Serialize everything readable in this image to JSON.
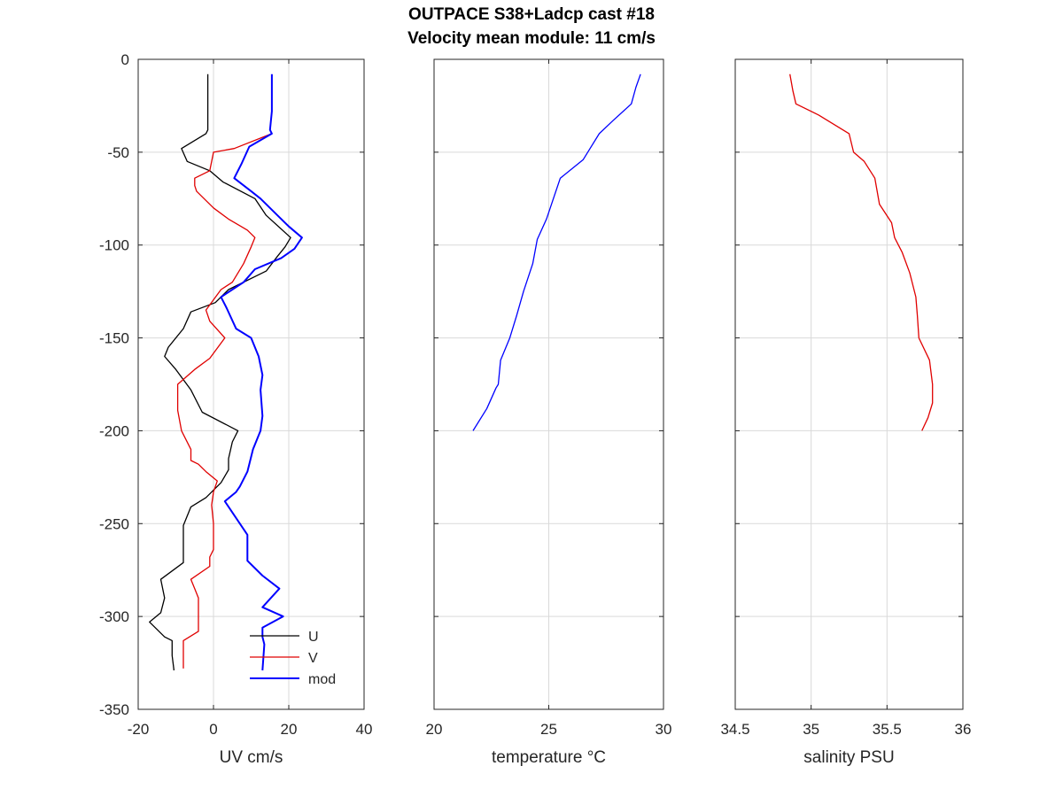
{
  "title": "OUTPACE S38+Ladcp cast #18",
  "subtitle": "Velocity mean module:  11 cm/s",
  "colors": {
    "U": "#000000",
    "V": "#e00000",
    "mod": "#0000ff",
    "grid": "#d9d9d9",
    "axis": "#262626"
  },
  "chart_data": [
    {
      "type": "line",
      "xlabel": "UV cm/s",
      "ylabel": "",
      "xlim": [
        -20,
        40
      ],
      "ylim": [
        -350,
        0
      ],
      "xticks": [
        -20,
        0,
        20,
        40
      ],
      "yticks": [
        0,
        -50,
        -100,
        -150,
        -200,
        -250,
        -300,
        -350
      ],
      "grid": true,
      "legend": "bottom-right",
      "series": [
        {
          "name": "U",
          "color": "#000000",
          "x": [
            -1.5,
            -1.5,
            -2,
            -8.5,
            -7,
            -1,
            2.5,
            11,
            14,
            20.5,
            19,
            17,
            14,
            4,
            0.5,
            -6,
            -8,
            -12,
            -13,
            -10,
            -6,
            -3,
            6.5,
            5,
            4,
            4,
            2,
            -2,
            -6,
            -8,
            -8,
            -8,
            -14,
            -13,
            -14,
            -17,
            -13,
            -11,
            -11,
            -10.5
          ],
          "y": [
            -8,
            -38,
            -40,
            -48,
            -55,
            -60,
            -66,
            -75,
            -84,
            -96,
            -101,
            -106,
            -114,
            -124,
            -131,
            -136,
            -145,
            -155,
            -160,
            -167,
            -178,
            -190,
            -200,
            -206,
            -215,
            -221,
            -228,
            -236,
            -241,
            -251,
            -257,
            -271,
            -280,
            -290,
            -298,
            -303,
            -311,
            -313,
            -321,
            -329
          ]
        },
        {
          "name": "V",
          "color": "#e00000",
          "x": [
            15.5,
            5.5,
            0,
            -1,
            -5,
            -5,
            -4.5,
            0,
            4,
            9,
            11,
            10,
            8,
            5,
            2,
            -2,
            -1,
            3,
            -1,
            -5,
            -9.5,
            -9.5,
            -8.5,
            -6,
            -6,
            -4,
            -2,
            1,
            0,
            -0.5,
            0,
            0,
            -1,
            -1,
            -6,
            -5,
            -4,
            -4,
            -8,
            -8
          ],
          "y": [
            -40,
            -48,
            -50,
            -60,
            -64,
            -68,
            -71,
            -80,
            -86,
            -92,
            -96,
            -101,
            -110,
            -120,
            -124,
            -135,
            -141,
            -150,
            -161,
            -167,
            -175,
            -189,
            -200,
            -210,
            -216,
            -218,
            -222,
            -227,
            -233,
            -240,
            -250,
            -264,
            -268,
            -273,
            -280,
            -285,
            -290,
            -308,
            -313,
            -328
          ]
        },
        {
          "name": "mod",
          "color": "#0000ff",
          "x": [
            15.5,
            15.5,
            15,
            15.5,
            9.5,
            7.5,
            5.5,
            10,
            12.5,
            17.5,
            20,
            23.5,
            21.5,
            18,
            11,
            8,
            2,
            3.5,
            6,
            10,
            12,
            13,
            12.5,
            13,
            12.5,
            10.5,
            9.5,
            9,
            7,
            6,
            3,
            5,
            7,
            9,
            9,
            9,
            13,
            17.5,
            13,
            18.5,
            13,
            13,
            13.5,
            13
          ],
          "y": [
            -8,
            -28,
            -38,
            -40,
            -47,
            -56,
            -64,
            -71,
            -75,
            -85,
            -90,
            -96,
            -102,
            -107,
            -113,
            -120,
            -128,
            -134,
            -145,
            -150,
            -160,
            -170,
            -178,
            -192,
            -200,
            -210,
            -218,
            -222,
            -230,
            -233,
            -238,
            -244,
            -250,
            -256,
            -265,
            -270,
            -278,
            -285,
            -295,
            -300,
            -306,
            -311,
            -315,
            -329
          ]
        }
      ]
    },
    {
      "type": "line",
      "xlabel": "temperature °C",
      "xlim": [
        20,
        30
      ],
      "ylim": [
        -350,
        0
      ],
      "xticks": [
        20,
        25,
        30
      ],
      "yticks": [
        0,
        -50,
        -100,
        -150,
        -200,
        -250,
        -300,
        -350
      ],
      "grid": true,
      "series": [
        {
          "color": "#0000ff",
          "x": [
            29,
            28.8,
            28.6,
            27.8,
            27.2,
            26.8,
            26.5,
            25.5,
            25.2,
            24.9,
            24.5,
            24.3,
            23.9,
            23.6,
            23.3,
            22.9,
            22.8,
            22.7,
            22.3,
            21.7
          ],
          "y": [
            -8,
            -15,
            -24,
            -33,
            -40,
            -48,
            -54,
            -64,
            -75,
            -86,
            -97,
            -110,
            -125,
            -138,
            -150,
            -162,
            -175,
            -177,
            -188,
            -200
          ]
        }
      ]
    },
    {
      "type": "line",
      "xlabel": "salinity PSU",
      "xlim": [
        34.5,
        36
      ],
      "ylim": [
        -350,
        0
      ],
      "xticks": [
        34.5,
        35,
        35.5,
        36
      ],
      "yticks": [
        0,
        -50,
        -100,
        -150,
        -200,
        -250,
        -300,
        -350
      ],
      "grid": true,
      "series": [
        {
          "color": "#e00000",
          "x": [
            34.86,
            34.88,
            34.9,
            35.05,
            35.25,
            35.28,
            35.35,
            35.42,
            35.45,
            35.53,
            35.55,
            35.6,
            35.65,
            35.69,
            35.7,
            35.71,
            35.78,
            35.8,
            35.8,
            35.77,
            35.73
          ],
          "y": [
            -8,
            -17,
            -24,
            -30,
            -40,
            -50,
            -55,
            -64,
            -78,
            -88,
            -96,
            -104,
            -115,
            -128,
            -138,
            -150,
            -162,
            -175,
            -185,
            -193,
            -200
          ]
        }
      ]
    }
  ]
}
